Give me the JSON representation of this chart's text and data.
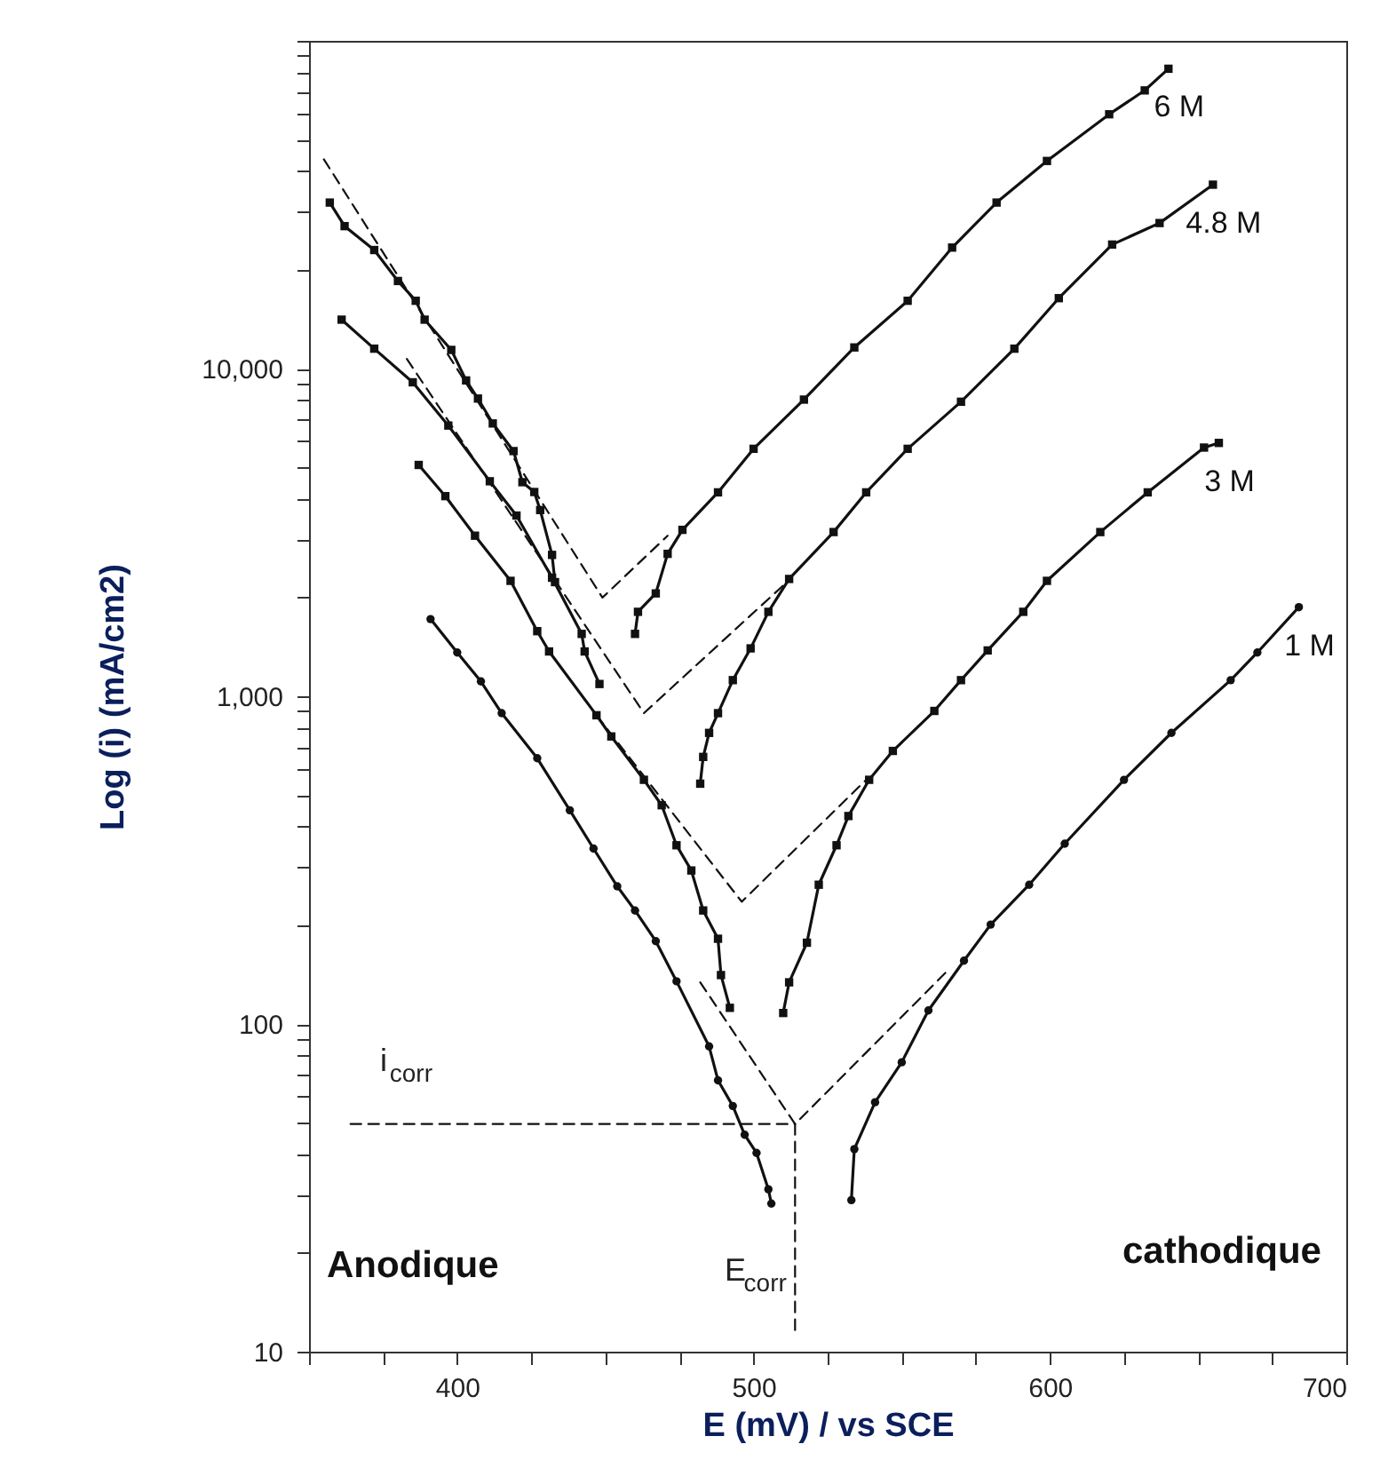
{
  "chart_data": {
    "type": "line",
    "xlabel": "E (mV) / vs SCE",
    "ylabel": "Log (i) (mA/cm2)",
    "log": true,
    "grid": false,
    "xlim": [
      350,
      700
    ],
    "ylim": [
      10,
      100000
    ],
    "xticks": [
      {
        "value": 350,
        "label": null
      },
      {
        "value": 375,
        "label": null
      },
      400,
      {
        "value": 425,
        "label": null
      },
      {
        "value": 450,
        "label": null
      },
      {
        "value": 475,
        "label": null
      },
      500,
      {
        "value": 525,
        "label": null
      },
      {
        "value": 550,
        "label": null
      },
      {
        "value": 575,
        "label": null
      },
      600,
      {
        "value": 625,
        "label": null
      },
      {
        "value": 650,
        "label": null
      },
      {
        "value": 675,
        "label": null
      },
      700
    ],
    "yticks": [
      10,
      {
        "value": 20,
        "label": null
      },
      {
        "value": 30,
        "label": null
      },
      {
        "value": 40,
        "label": null
      },
      {
        "value": 50,
        "label": null
      },
      {
        "value": 60,
        "label": null
      },
      {
        "value": 70,
        "label": null
      },
      {
        "value": 80,
        "label": null
      },
      {
        "value": 90,
        "label": null
      },
      100,
      {
        "value": 200,
        "label": null
      },
      {
        "value": 300,
        "label": null
      },
      {
        "value": 400,
        "label": null
      },
      {
        "value": 500,
        "label": null
      },
      {
        "value": 600,
        "label": null
      },
      {
        "value": 700,
        "label": null
      },
      {
        "value": 800,
        "label": null
      },
      {
        "value": 900,
        "label": null
      },
      {
        "value": 1000,
        "label": "1,000"
      },
      {
        "value": 2000,
        "label": null
      },
      {
        "value": 3000,
        "label": null
      },
      {
        "value": 4000,
        "label": null
      },
      {
        "value": 5000,
        "label": null
      },
      {
        "value": 6000,
        "label": null
      },
      {
        "value": 7000,
        "label": null
      },
      {
        "value": 8000,
        "label": null
      },
      {
        "value": 9000,
        "label": null
      },
      {
        "value": 10000,
        "label": "10,000"
      },
      {
        "value": 20000,
        "label": null
      },
      {
        "value": 30000,
        "label": null
      },
      {
        "value": 40000,
        "label": null
      },
      {
        "value": 50000,
        "label": null
      },
      {
        "value": 60000,
        "label": null
      },
      {
        "value": 70000,
        "label": null
      },
      {
        "value": 80000,
        "label": null
      },
      {
        "value": 90000,
        "label": null
      },
      {
        "value": 100000,
        "label": null
      }
    ],
    "annotations": [
      "Anodique",
      "cathodique",
      "i$_{corr}$",
      "E$_{corr}$"
    ],
    "series": [
      {
        "name": "6 M",
        "color": "#111111",
        "marker": "square",
        "x": [
          460,
          461,
          467,
          471,
          476,
          488,
          500,
          517,
          534,
          552,
          567,
          582,
          599,
          620,
          632,
          640
        ],
        "values": [
          1550,
          1810,
          2060,
          2720,
          3220,
          4190,
          5690,
          8040,
          11600,
          16100,
          23400,
          32100,
          43000,
          59700,
          70600,
          82200
        ]
      },
      {
        "color": "#111111",
        "marker": "square",
        "x": [
          357,
          362,
          372,
          380,
          386,
          389,
          398,
          403,
          407,
          412,
          419,
          422,
          426,
          428,
          432,
          433
        ],
        "values": [
          32100,
          27200,
          23000,
          18500,
          16100,
          14100,
          11400,
          9200,
          8100,
          6800,
          5600,
          4500,
          4200,
          3700,
          2700,
          2230
        ]
      },
      {
        "name": "4.8 M",
        "color": "#111111",
        "marker": "square",
        "x": [
          482,
          483,
          485,
          488,
          493,
          499,
          505,
          512,
          527,
          538,
          552,
          570,
          588,
          603,
          621,
          637,
          655
        ],
        "values": [
          541,
          653,
          773,
          888,
          1120,
          1400,
          1810,
          2280,
          3170,
          4190,
          5690,
          7920,
          11500,
          16400,
          23900,
          27800,
          36400
        ]
      },
      {
        "color": "#111111",
        "marker": "square",
        "x": [
          361,
          372,
          385,
          397,
          411,
          420,
          432,
          442,
          443,
          448
        ],
        "values": [
          14100,
          11500,
          9080,
          6700,
          4530,
          3560,
          2300,
          1550,
          1370,
          1090
        ]
      },
      {
        "name": "3 M",
        "color": "#111111",
        "marker": "square",
        "x": [
          510,
          512,
          518,
          522,
          528,
          532,
          539,
          547,
          561,
          570,
          579,
          591,
          599,
          617,
          633,
          652,
          657
        ],
        "values": [
          108,
          134,
          177,
          266,
          351,
          431,
          556,
          681,
          902,
          1120,
          1380,
          1810,
          2250,
          3170,
          4190,
          5740,
          5930
        ]
      },
      {
        "color": "#111111",
        "marker": "square",
        "x": [
          387,
          396,
          406,
          418,
          427,
          431,
          447,
          452,
          463,
          469,
          474,
          479,
          483,
          488,
          489,
          492
        ],
        "values": [
          5080,
          4080,
          3090,
          2250,
          1580,
          1370,
          875,
          754,
          556,
          465,
          351,
          294,
          222,
          182,
          141,
          112
        ]
      },
      {
        "name": "1 M",
        "color": "#111111",
        "marker": "circle",
        "x": [
          533,
          534,
          541,
          550,
          559,
          571,
          580,
          593,
          605,
          625,
          641,
          661,
          670,
          684
        ],
        "values": [
          29,
          41.5,
          57.7,
          76.4,
          110,
          156,
          201,
          266,
          355,
          556,
          773,
          1120,
          1360,
          1870
        ]
      },
      {
        "color": "#111111",
        "marker": "circle",
        "x": [
          391,
          400,
          408,
          415,
          427,
          438,
          446,
          454,
          460,
          467,
          474,
          485,
          488,
          493,
          497,
          501,
          505,
          506
        ],
        "values": [
          1720,
          1360,
          1110,
          888,
          647,
          449,
          343,
          263,
          222,
          179,
          135,
          85.4,
          67.3,
          56.2,
          45.9,
          40.4,
          31.3,
          28.3
        ]
      },
      {
        "color": "#111111",
        "marker": "none",
        "line_style": "dashed",
        "x": [
          355,
          449,
          471
        ],
        "values": [
          43500,
          2000,
          3090
        ]
      },
      {
        "color": "#111111",
        "marker": "none",
        "line_style": "dashed",
        "x": [
          383,
          463,
          511
        ],
        "values": [
          10700,
          888,
          2220
        ]
      },
      {
        "color": "#111111",
        "marker": "none",
        "line_style": "dashed",
        "x": [
          447,
          496,
          538
        ],
        "values": [
          875,
          236,
          556
        ]
      },
      {
        "color": "#111111",
        "marker": "none",
        "line_style": "dashed",
        "x": [
          482,
          514,
          565
        ],
        "values": [
          134,
          49.5,
          144
        ]
      },
      {
        "color": "#111111",
        "marker": "none",
        "line_style": "dashed",
        "x": [
          364,
          514
        ],
        "values": [
          49.5,
          49.5
        ]
      },
      {
        "color": "#111111",
        "marker": "none",
        "line_style": "dashed",
        "x": [
          514,
          514
        ],
        "values": [
          49.5,
          11.6
        ]
      }
    ]
  }
}
